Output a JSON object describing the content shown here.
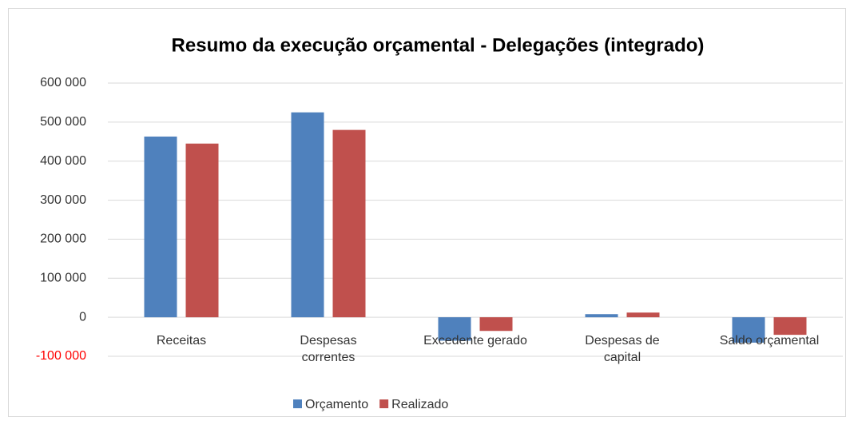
{
  "chart_data": {
    "type": "bar",
    "title": "Resumo da execução orçamental - Delegações (integrado)",
    "categories": [
      "Receitas",
      "Despesas\ncorrentes",
      "Excedente gerado",
      "Despesas de\ncapital",
      "Saldo orçamental"
    ],
    "series": [
      {
        "name": "Orçamento",
        "color": "#4f81bd",
        "values": [
          463000,
          525000,
          -60000,
          8000,
          -65000
        ]
      },
      {
        "name": "Realizado",
        "color": "#c0504d",
        "values": [
          445000,
          480000,
          -35000,
          12000,
          -45000
        ]
      }
    ],
    "ylim": [
      -100000,
      600000
    ],
    "yticks": [
      {
        "value": -100000,
        "label": "-100 000",
        "color": "#ff0000"
      },
      0,
      {
        "value": 100000,
        "label": "100 000"
      },
      {
        "value": 200000,
        "label": "200 000"
      },
      {
        "value": 300000,
        "label": "300 000"
      },
      {
        "value": 400000,
        "label": "400 000"
      },
      {
        "value": 500000,
        "label": "500 000"
      },
      {
        "value": 600000,
        "label": "600 000"
      }
    ],
    "grid": true,
    "legend": "bottom"
  }
}
